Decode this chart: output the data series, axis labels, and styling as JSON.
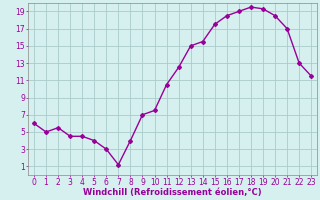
{
  "hours": [
    0,
    1,
    2,
    3,
    4,
    5,
    6,
    7,
    8,
    9,
    10,
    11,
    12,
    13,
    14,
    15,
    16,
    17,
    18,
    19,
    20,
    21,
    22,
    23
  ],
  "values": [
    6.0,
    5.0,
    5.5,
    4.5,
    4.5,
    4.0,
    3.0,
    1.2,
    4.0,
    7.0,
    7.5,
    10.5,
    12.5,
    15.0,
    15.5,
    17.5,
    18.5,
    19.0,
    19.5,
    19.3,
    18.5,
    17.0,
    13.0,
    11.5
  ],
  "line_color": "#990099",
  "marker": "D",
  "markersize": 2.0,
  "bg_color": "#d6f0f0",
  "grid_color": "#aacccc",
  "xlabel": "Windchill (Refroidissement éolien,°C)",
  "xlim": [
    -0.5,
    23.5
  ],
  "ylim": [
    0,
    20
  ],
  "yticks": [
    1,
    3,
    5,
    7,
    9,
    11,
    13,
    15,
    17,
    19
  ],
  "xticks": [
    0,
    1,
    2,
    3,
    4,
    5,
    6,
    7,
    8,
    9,
    10,
    11,
    12,
    13,
    14,
    15,
    16,
    17,
    18,
    19,
    20,
    21,
    22,
    23
  ],
  "xlabel_fontsize": 6.0,
  "tick_fontsize": 5.5,
  "xlabel_color": "#990099",
  "tick_color": "#990099",
  "linewidth": 1.0,
  "spine_color": "#888888"
}
